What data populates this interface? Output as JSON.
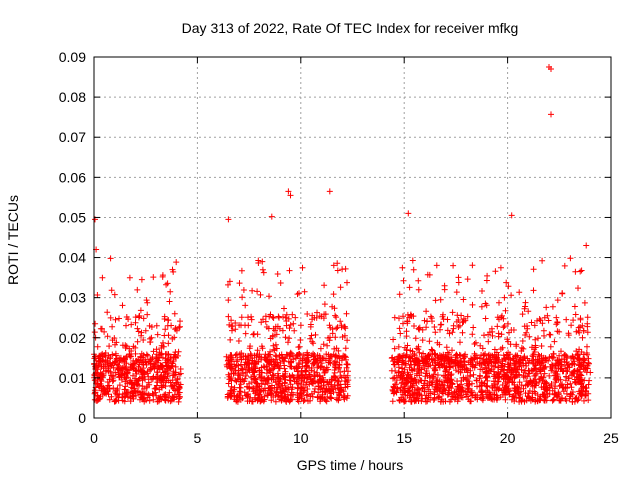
{
  "chart_data": {
    "type": "scatter",
    "title": "Day 313 of 2022, Rate Of TEC Index for receiver mfkg",
    "xlabel": "GPS time / hours",
    "ylabel": "ROTI / TECUs",
    "xlim": [
      0,
      25
    ],
    "ylim": [
      0,
      0.09
    ],
    "x_ticks": [
      "0",
      "5",
      "10",
      "15",
      "20",
      "25"
    ],
    "y_ticks": [
      "0",
      "0.01",
      "0.02",
      "0.03",
      "0.04",
      "0.05",
      "0.06",
      "0.07",
      "0.08",
      "0.09"
    ],
    "grid": true,
    "legend": "none",
    "marker": "+",
    "color": "#ff0000",
    "segments": [
      {
        "start": 0.0,
        "end": 4.2
      },
      {
        "start": 6.4,
        "end": 12.3
      },
      {
        "start": 14.4,
        "end": 24.0
      }
    ],
    "notable_points": [
      {
        "x": 0.05,
        "y": 0.0495
      },
      {
        "x": 0.1,
        "y": 0.042
      },
      {
        "x": 6.5,
        "y": 0.0495
      },
      {
        "x": 8.6,
        "y": 0.0502
      },
      {
        "x": 9.4,
        "y": 0.0565
      },
      {
        "x": 9.5,
        "y": 0.0555
      },
      {
        "x": 11.4,
        "y": 0.0565
      },
      {
        "x": 15.2,
        "y": 0.051
      },
      {
        "x": 20.2,
        "y": 0.0505
      },
      {
        "x": 22.0,
        "y": 0.0875
      },
      {
        "x": 22.1,
        "y": 0.087
      },
      {
        "x": 22.1,
        "y": 0.0757
      },
      {
        "x": 23.8,
        "y": 0.043
      }
    ]
  }
}
